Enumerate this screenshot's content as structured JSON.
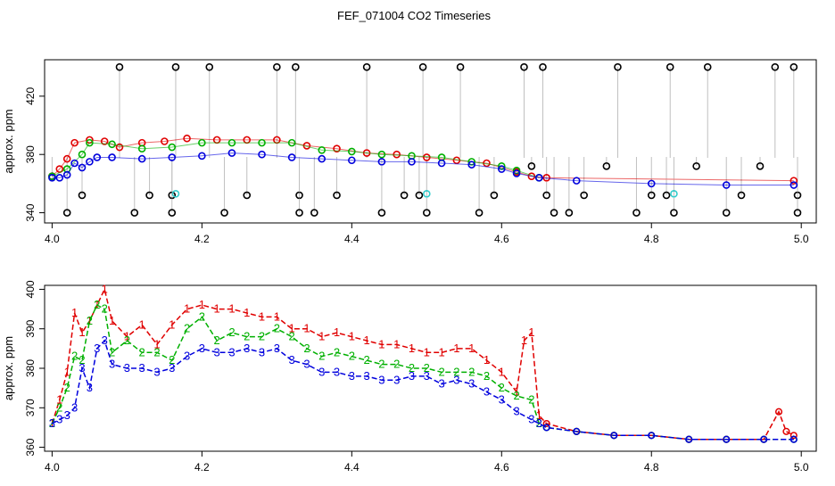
{
  "title": "FEF_071004  CO2 Timeseries",
  "colors": {
    "black": "#000000",
    "red": "#e00000",
    "green": "#00b000",
    "blue": "#0000dd",
    "cyan": "#33cccc",
    "gray": "#808080"
  },
  "chart_data": [
    {
      "type": "scatter",
      "title": "FEF_071004  CO2 Timeseries",
      "xlabel": "",
      "ylabel": "approx. ppm",
      "xlim": [
        3.99,
        5.02
      ],
      "ylim": [
        333,
        445
      ],
      "xticks": [
        "4.0",
        "4.2",
        "4.4",
        "4.6",
        "4.8",
        "5.0"
      ],
      "yticks": [
        "340",
        "380",
        "420"
      ],
      "series": [
        {
          "name": "black",
          "color": "#000000",
          "points": [
            [
              4.0,
              365
            ],
            [
              4.02,
              340
            ],
            [
              4.04,
              352
            ],
            [
              4.09,
              440
            ],
            [
              4.11,
              340
            ],
            [
              4.13,
              352
            ],
            [
              4.16,
              352
            ],
            [
              4.165,
              440
            ],
            [
              4.16,
              340
            ],
            [
              4.21,
              440
            ],
            [
              4.23,
              340
            ],
            [
              4.26,
              352
            ],
            [
              4.3,
              440
            ],
            [
              4.325,
              440
            ],
            [
              4.33,
              352
            ],
            [
              4.33,
              340
            ],
            [
              4.35,
              340
            ],
            [
              4.38,
              352
            ],
            [
              4.42,
              440
            ],
            [
              4.44,
              340
            ],
            [
              4.47,
              352
            ],
            [
              4.49,
              352
            ],
            [
              4.495,
              440
            ],
            [
              4.5,
              340
            ],
            [
              4.545,
              440
            ],
            [
              4.57,
              340
            ],
            [
              4.59,
              352
            ],
            [
              4.63,
              440
            ],
            [
              4.64,
              372
            ],
            [
              4.655,
              440
            ],
            [
              4.66,
              352
            ],
            [
              4.67,
              340
            ],
            [
              4.69,
              340
            ],
            [
              4.71,
              352
            ],
            [
              4.74,
              372
            ],
            [
              4.755,
              440
            ],
            [
              4.78,
              340
            ],
            [
              4.8,
              352
            ],
            [
              4.82,
              352
            ],
            [
              4.825,
              440
            ],
            [
              4.83,
              340
            ],
            [
              4.86,
              372
            ],
            [
              4.875,
              440
            ],
            [
              4.9,
              340
            ],
            [
              4.92,
              352
            ],
            [
              4.945,
              372
            ],
            [
              4.965,
              440
            ],
            [
              4.99,
              440
            ],
            [
              4.995,
              352
            ],
            [
              4.995,
              340
            ]
          ]
        },
        {
          "name": "red",
          "color": "#e00000",
          "points": [
            [
              4.0,
              365
            ],
            [
              4.01,
              370
            ],
            [
              4.02,
              377
            ],
            [
              4.03,
              388
            ],
            [
              4.05,
              390
            ],
            [
              4.07,
              389
            ],
            [
              4.09,
              385
            ],
            [
              4.12,
              388
            ],
            [
              4.15,
              389
            ],
            [
              4.18,
              391
            ],
            [
              4.22,
              390
            ],
            [
              4.26,
              390
            ],
            [
              4.3,
              390
            ],
            [
              4.34,
              386
            ],
            [
              4.38,
              384
            ],
            [
              4.42,
              381
            ],
            [
              4.46,
              380
            ],
            [
              4.5,
              378
            ],
            [
              4.54,
              376
            ],
            [
              4.58,
              374
            ],
            [
              4.62,
              368
            ],
            [
              4.64,
              365
            ],
            [
              4.66,
              364
            ],
            [
              4.99,
              362
            ]
          ]
        },
        {
          "name": "green",
          "color": "#00b000",
          "points": [
            [
              4.0,
              365
            ],
            [
              4.02,
              370
            ],
            [
              4.04,
              380
            ],
            [
              4.05,
              388
            ],
            [
              4.08,
              387
            ],
            [
              4.12,
              384
            ],
            [
              4.16,
              385
            ],
            [
              4.2,
              388
            ],
            [
              4.24,
              388
            ],
            [
              4.28,
              388
            ],
            [
              4.32,
              388
            ],
            [
              4.36,
              383
            ],
            [
              4.4,
              382
            ],
            [
              4.44,
              380
            ],
            [
              4.48,
              379
            ],
            [
              4.52,
              378
            ],
            [
              4.56,
              375
            ],
            [
              4.6,
              372
            ],
            [
              4.62,
              369
            ],
            [
              4.65,
              364
            ]
          ]
        },
        {
          "name": "blue",
          "color": "#0000dd",
          "points": [
            [
              4.0,
              364
            ],
            [
              4.01,
              364
            ],
            [
              4.02,
              366
            ],
            [
              4.03,
              374
            ],
            [
              4.04,
              371
            ],
            [
              4.05,
              375
            ],
            [
              4.06,
              378
            ],
            [
              4.08,
              378
            ],
            [
              4.12,
              377
            ],
            [
              4.16,
              378
            ],
            [
              4.2,
              379
            ],
            [
              4.24,
              381
            ],
            [
              4.28,
              380
            ],
            [
              4.32,
              378
            ],
            [
              4.36,
              377
            ],
            [
              4.4,
              376
            ],
            [
              4.44,
              375
            ],
            [
              4.48,
              375
            ],
            [
              4.52,
              374
            ],
            [
              4.56,
              373
            ],
            [
              4.6,
              370
            ],
            [
              4.62,
              367
            ],
            [
              4.65,
              364
            ],
            [
              4.7,
              362
            ],
            [
              4.8,
              360
            ],
            [
              4.9,
              359
            ],
            [
              4.99,
              359
            ]
          ]
        },
        {
          "name": "cyan",
          "color": "#33cccc",
          "points": [
            [
              4.165,
              353
            ],
            [
              4.5,
              353
            ],
            [
              4.83,
              353
            ]
          ]
        }
      ]
    },
    {
      "type": "line",
      "xlabel": "",
      "ylabel": "approx. ppm",
      "xlim": [
        3.99,
        5.02
      ],
      "ylim": [
        359,
        401
      ],
      "xticks": [
        "4.0",
        "4.2",
        "4.4",
        "4.6",
        "4.8",
        "5.0"
      ],
      "yticks": [
        "360",
        "370",
        "380",
        "390",
        "400"
      ],
      "series": [
        {
          "name": "1",
          "color": "#e00000",
          "x": [
            4.0,
            4.01,
            4.02,
            4.03,
            4.04,
            4.05,
            4.06,
            4.07,
            4.08,
            4.1,
            4.12,
            4.14,
            4.16,
            4.18,
            4.2,
            4.22,
            4.24,
            4.26,
            4.28,
            4.3,
            4.32,
            4.34,
            4.36,
            4.38,
            4.4,
            4.42,
            4.44,
            4.46,
            4.48,
            4.5,
            4.52,
            4.54,
            4.56,
            4.58,
            4.6,
            4.62,
            4.63,
            4.64,
            4.65,
            4.66,
            4.7,
            4.75,
            4.8,
            4.85,
            4.9,
            4.95,
            4.97,
            4.98,
            4.99
          ],
          "values": [
            366,
            372,
            379,
            394,
            389,
            392,
            396,
            400,
            392,
            388,
            391,
            386,
            391,
            395,
            396,
            395,
            395,
            394,
            393,
            393,
            390,
            390,
            388,
            389,
            388,
            387,
            386,
            386,
            385,
            384,
            384,
            385,
            385,
            382,
            379,
            374,
            387,
            389,
            368,
            366,
            364,
            363,
            363,
            362,
            362,
            362,
            369,
            364,
            363
          ]
        },
        {
          "name": "2",
          "color": "#00b000",
          "x": [
            4.0,
            4.01,
            4.02,
            4.03,
            4.04,
            4.05,
            4.06,
            4.07,
            4.08,
            4.1,
            4.12,
            4.14,
            4.16,
            4.18,
            4.2,
            4.22,
            4.24,
            4.26,
            4.28,
            4.3,
            4.32,
            4.34,
            4.36,
            4.38,
            4.4,
            4.42,
            4.44,
            4.46,
            4.48,
            4.5,
            4.52,
            4.54,
            4.56,
            4.58,
            4.6,
            4.62,
            4.64,
            4.65,
            4.66,
            4.7,
            4.75,
            4.8,
            4.85,
            4.9,
            4.95,
            4.99
          ],
          "values": [
            366,
            370,
            375,
            383,
            382,
            392,
            396,
            395,
            384,
            387,
            384,
            384,
            382,
            390,
            393,
            387,
            389,
            388,
            388,
            390,
            388,
            385,
            383,
            384,
            383,
            382,
            381,
            381,
            380,
            380,
            379,
            379,
            379,
            378,
            375,
            373,
            372,
            366,
            365,
            364,
            363,
            363,
            362,
            362,
            362,
            362
          ]
        },
        {
          "name": "3",
          "color": "#0000dd",
          "x": [
            4.0,
            4.01,
            4.02,
            4.03,
            4.04,
            4.05,
            4.06,
            4.07,
            4.08,
            4.1,
            4.12,
            4.14,
            4.16,
            4.18,
            4.2,
            4.22,
            4.24,
            4.26,
            4.28,
            4.3,
            4.32,
            4.34,
            4.36,
            4.38,
            4.4,
            4.42,
            4.44,
            4.46,
            4.48,
            4.5,
            4.52,
            4.54,
            4.56,
            4.58,
            4.6,
            4.62,
            4.64,
            4.65,
            4.66,
            4.7,
            4.75,
            4.8,
            4.85,
            4.9,
            4.95,
            4.99
          ],
          "values": [
            366,
            367,
            368,
            370,
            380,
            375,
            385,
            387,
            381,
            380,
            380,
            379,
            380,
            383,
            385,
            384,
            384,
            385,
            384,
            385,
            382,
            381,
            379,
            379,
            378,
            378,
            377,
            377,
            378,
            378,
            376,
            377,
            376,
            374,
            372,
            369,
            367,
            366,
            365,
            364,
            363,
            363,
            362,
            362,
            362,
            362
          ]
        }
      ]
    }
  ]
}
